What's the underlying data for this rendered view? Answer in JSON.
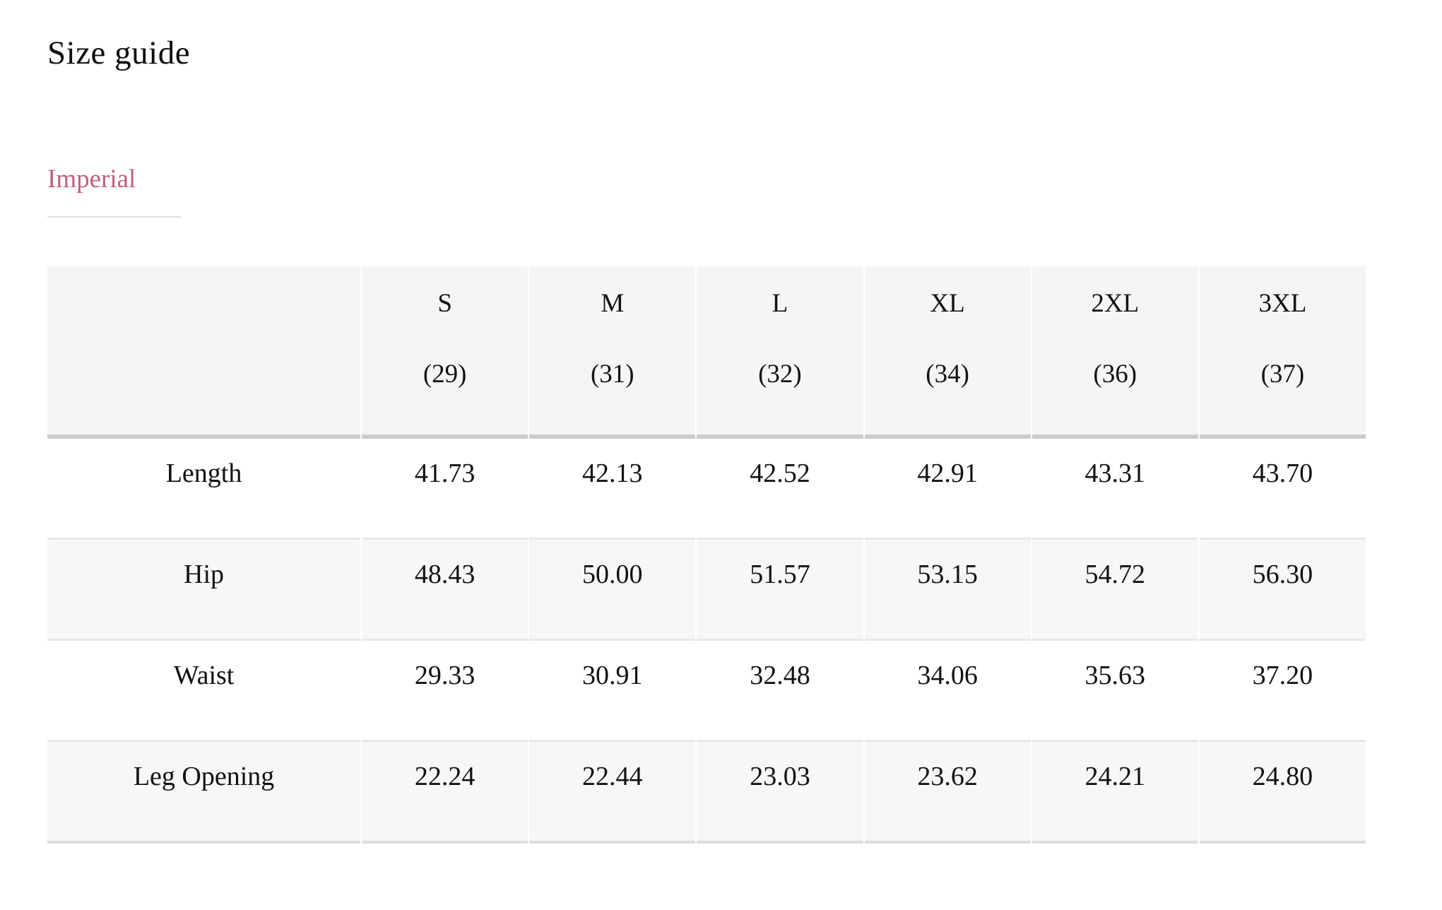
{
  "page": {
    "title": "Size guide"
  },
  "tabs": {
    "imperial": "Imperial"
  },
  "size_table": {
    "columns": [
      {
        "size": "S",
        "sub": "(29)"
      },
      {
        "size": "M",
        "sub": "(31)"
      },
      {
        "size": "L",
        "sub": "(32)"
      },
      {
        "size": "XL",
        "sub": "(34)"
      },
      {
        "size": "2XL",
        "sub": "(36)"
      },
      {
        "size": "3XL",
        "sub": "(37)"
      }
    ],
    "rows": [
      {
        "label": "Length",
        "values": [
          "41.73",
          "42.13",
          "42.52",
          "42.91",
          "43.31",
          "43.70"
        ]
      },
      {
        "label": "Hip",
        "values": [
          "48.43",
          "50.00",
          "51.57",
          "53.15",
          "54.72",
          "56.30"
        ]
      },
      {
        "label": "Waist",
        "values": [
          "29.33",
          "30.91",
          "32.48",
          "34.06",
          "35.63",
          "37.20"
        ]
      },
      {
        "label": "Leg Opening",
        "values": [
          "22.24",
          "22.44",
          "23.03",
          "23.62",
          "24.21",
          "24.80"
        ]
      }
    ]
  },
  "colors": {
    "accent_pink": "#c0607f",
    "tab_underline": "#e0e0e0",
    "header_bg": "#f5f5f5",
    "row_alt_bg": "#f7f7f7",
    "header_rule": "#cbcbcb",
    "row_rule": "#e7e7e7"
  }
}
